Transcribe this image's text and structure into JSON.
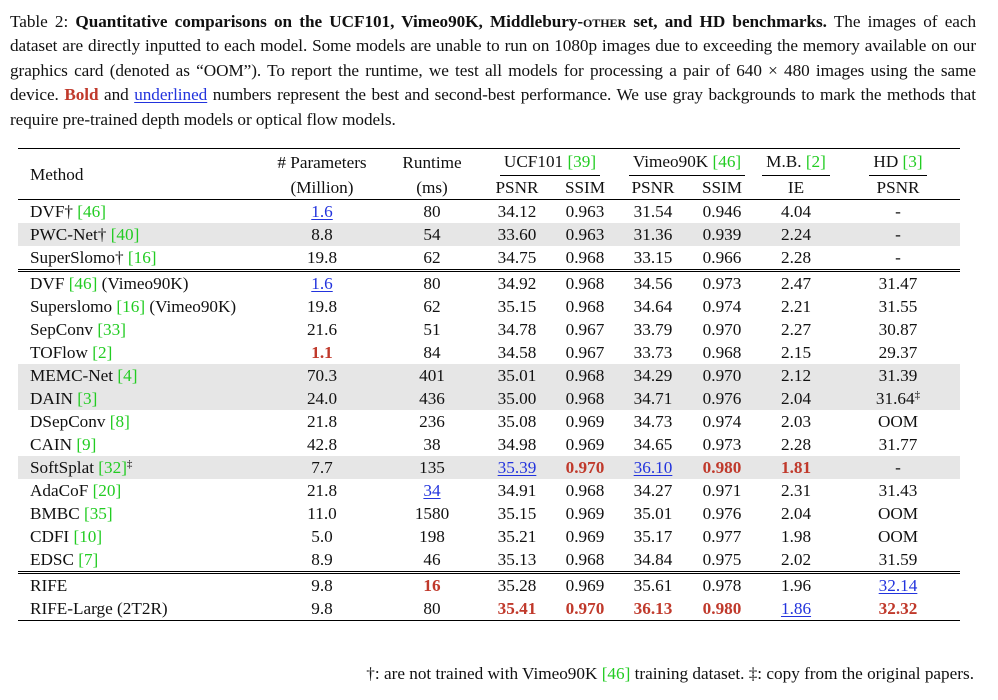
{
  "caption": {
    "label": "Table 2: ",
    "bold_title_1": "Quantitative comparisons on the UCF101, Vimeo90K, Middlebury-",
    "bold_title_sc": "other",
    "bold_title_2": " set, and HD benchmarks.",
    "text_1": " The images of each dataset are directly inputted to each model. Some models are unable to run on 1080p images due to exceeding the memory available on our graphics card (denoted as “OOM”). To report the runtime, we test all models for processing a pair of 640 × 480 images using the same device. ",
    "bold_word": "Bold",
    "text_2": " and ",
    "underlined_word": "underlined",
    "text_3": " numbers represent the best and second-best performance. We use gray backgrounds to mark the methods that require pre-trained depth models or optical flow models."
  },
  "table": {
    "header": {
      "method": "Method",
      "params_top": "# Parameters",
      "params_bottom": "(Million)",
      "runtime_top": "Runtime",
      "runtime_bottom": "(ms)",
      "ucf": "UCF101 ",
      "ucf_cite": "[39]",
      "vimeo": "Vimeo90K ",
      "vimeo_cite": "[46]",
      "mb": "M.B. ",
      "mb_cite": "[2]",
      "hd": "HD ",
      "hd_cite": "[3]",
      "psnr": "PSNR",
      "ssim": "SSIM",
      "ie": "IE"
    },
    "groups": [
      [
        {
          "name": "DVF†",
          "cite": "[46]",
          "suffix": "",
          "params": "1.6",
          "runtime": "80",
          "ucf_psnr": "34.12",
          "ucf_ssim": "0.963",
          "vim_psnr": "31.54",
          "vim_ssim": "0.946",
          "mb_ie": "4.04",
          "hd_psnr": "-",
          "gray": false
        },
        {
          "name": "PWC-Net†",
          "cite": "[40]",
          "suffix": "",
          "params": "8.8",
          "runtime": "54",
          "ucf_psnr": "33.60",
          "ucf_ssim": "0.963",
          "vim_psnr": "31.36",
          "vim_ssim": "0.939",
          "mb_ie": "2.24",
          "hd_psnr": "-",
          "gray": true
        },
        {
          "name": "SuperSlomo†",
          "cite": "[16]",
          "suffix": "",
          "params": "19.8",
          "runtime": "62",
          "ucf_psnr": "34.75",
          "ucf_ssim": "0.968",
          "vim_psnr": "33.15",
          "vim_ssim": "0.966",
          "mb_ie": "2.28",
          "hd_psnr": "-",
          "gray": false
        }
      ],
      [
        {
          "name": "DVF",
          "cite": "[46]",
          "suffix": " (Vimeo90K)",
          "params": "1.6",
          "runtime": "80",
          "ucf_psnr": "34.92",
          "ucf_ssim": "0.968",
          "vim_psnr": "34.56",
          "vim_ssim": "0.973",
          "mb_ie": "2.47",
          "hd_psnr": "31.47",
          "gray": false
        },
        {
          "name": "Superslomo",
          "cite": "[16]",
          "suffix": " (Vimeo90K)",
          "params": "19.8",
          "runtime": "62",
          "ucf_psnr": "35.15",
          "ucf_ssim": "0.968",
          "vim_psnr": "34.64",
          "vim_ssim": "0.974",
          "mb_ie": "2.21",
          "hd_psnr": "31.55",
          "gray": false
        },
        {
          "name": "SepConv",
          "cite": "[33]",
          "suffix": "",
          "params": "21.6",
          "runtime": "51",
          "ucf_psnr": "34.78",
          "ucf_ssim": "0.967",
          "vim_psnr": "33.79",
          "vim_ssim": "0.970",
          "mb_ie": "2.27",
          "hd_psnr": "30.87",
          "gray": false
        },
        {
          "name": "TOFlow",
          "cite": "[2]",
          "suffix": "",
          "params": "1.1",
          "runtime": "84",
          "ucf_psnr": "34.58",
          "ucf_ssim": "0.967",
          "vim_psnr": "33.73",
          "vim_ssim": "0.968",
          "mb_ie": "2.15",
          "hd_psnr": "29.37",
          "gray": false
        },
        {
          "name": "MEMC-Net",
          "cite": "[4]",
          "suffix": "",
          "params": "70.3",
          "runtime": "401",
          "ucf_psnr": "35.01",
          "ucf_ssim": "0.968",
          "vim_psnr": "34.29",
          "vim_ssim": "0.970",
          "mb_ie": "2.12",
          "hd_psnr": "31.39",
          "gray": true
        },
        {
          "name": "DAIN",
          "cite": "[3]",
          "suffix": "",
          "params": "24.0",
          "runtime": "436",
          "ucf_psnr": "35.00",
          "ucf_ssim": "0.968",
          "vim_psnr": "34.71",
          "vim_ssim": "0.976",
          "mb_ie": "2.04",
          "hd_psnr": "31.64",
          "gray": true
        },
        {
          "name": "DSepConv",
          "cite": "[8]",
          "suffix": "",
          "params": "21.8",
          "runtime": "236",
          "ucf_psnr": "35.08",
          "ucf_ssim": "0.969",
          "vim_psnr": "34.73",
          "vim_ssim": "0.974",
          "mb_ie": "2.03",
          "hd_psnr": "OOM",
          "gray": false
        },
        {
          "name": "CAIN",
          "cite": "[9]",
          "suffix": "",
          "params": "42.8",
          "runtime": "38",
          "ucf_psnr": "34.98",
          "ucf_ssim": "0.969",
          "vim_psnr": "34.65",
          "vim_ssim": "0.973",
          "mb_ie": "2.28",
          "hd_psnr": "31.77",
          "gray": false
        },
        {
          "name": "SoftSplat",
          "cite": "[32]",
          "suffix": "",
          "params": "7.7",
          "runtime": "135",
          "ucf_psnr": "35.39",
          "ucf_ssim": "0.970",
          "vim_psnr": "36.10",
          "vim_ssim": "0.980",
          "mb_ie": "1.81",
          "hd_psnr": "-",
          "gray": true
        },
        {
          "name": "AdaCoF",
          "cite": "[20]",
          "suffix": "",
          "params": "21.8",
          "runtime": "34",
          "ucf_psnr": "34.91",
          "ucf_ssim": "0.968",
          "vim_psnr": "34.27",
          "vim_ssim": "0.971",
          "mb_ie": "2.31",
          "hd_psnr": "31.43",
          "gray": false
        },
        {
          "name": "BMBC",
          "cite": "[35]",
          "suffix": "",
          "params": "11.0",
          "runtime": "1580",
          "ucf_psnr": "35.15",
          "ucf_ssim": "0.969",
          "vim_psnr": "35.01",
          "vim_ssim": "0.976",
          "mb_ie": "2.04",
          "hd_psnr": "OOM",
          "gray": false
        },
        {
          "name": "CDFI",
          "cite": "[10]",
          "suffix": "",
          "params": "5.0",
          "runtime": "198",
          "ucf_psnr": "35.21",
          "ucf_ssim": "0.969",
          "vim_psnr": "35.17",
          "vim_ssim": "0.977",
          "mb_ie": "1.98",
          "hd_psnr": "OOM",
          "gray": false
        },
        {
          "name": "EDSC",
          "cite": "[7]",
          "suffix": "",
          "params": "8.9",
          "runtime": "46",
          "ucf_psnr": "35.13",
          "ucf_ssim": "0.968",
          "vim_psnr": "34.84",
          "vim_ssim": "0.975",
          "mb_ie": "2.02",
          "hd_psnr": "31.59",
          "gray": false
        }
      ],
      [
        {
          "name": "RIFE",
          "cite": "",
          "suffix": "",
          "params": "9.8",
          "runtime": "16",
          "ucf_psnr": "35.28",
          "ucf_ssim": "0.969",
          "vim_psnr": "35.61",
          "vim_ssim": "0.978",
          "mb_ie": "1.96",
          "hd_psnr": "32.14",
          "gray": false
        },
        {
          "name": "RIFE-Large (2T2R)",
          "cite": "",
          "suffix": "",
          "params": "9.8",
          "runtime": "80",
          "ucf_psnr": "35.41",
          "ucf_ssim": "0.970",
          "vim_psnr": "36.13",
          "vim_ssim": "0.980",
          "mb_ie": "1.86",
          "hd_psnr": "32.32",
          "gray": false
        }
      ]
    ],
    "marks": {
      "best": [
        "2-0.runtime",
        "1-3.params",
        "1-8.ucf_ssim",
        "1-8.vim_ssim",
        "1-8.mb_ie",
        "2-1.ucf_psnr",
        "2-1.ucf_ssim",
        "2-1.vim_psnr",
        "2-1.vim_ssim",
        "2-1.hd_psnr"
      ],
      "second": [
        "0-0.params",
        "1-0.params",
        "1-8.ucf_psnr",
        "1-8.vim_psnr",
        "1-9.runtime",
        "2-0.hd_psnr",
        "2-1.mb_ie"
      ],
      "double_dagger": [
        "1-5.hd_psnr",
        "1-8.name"
      ],
      "double_dagger_symbol": "‡"
    }
  },
  "footnote": {
    "text_1": "†: are not trained with Vimeo90K ",
    "cite": "[46]",
    "text_2": " training dataset. ‡: copy from the original papers."
  }
}
